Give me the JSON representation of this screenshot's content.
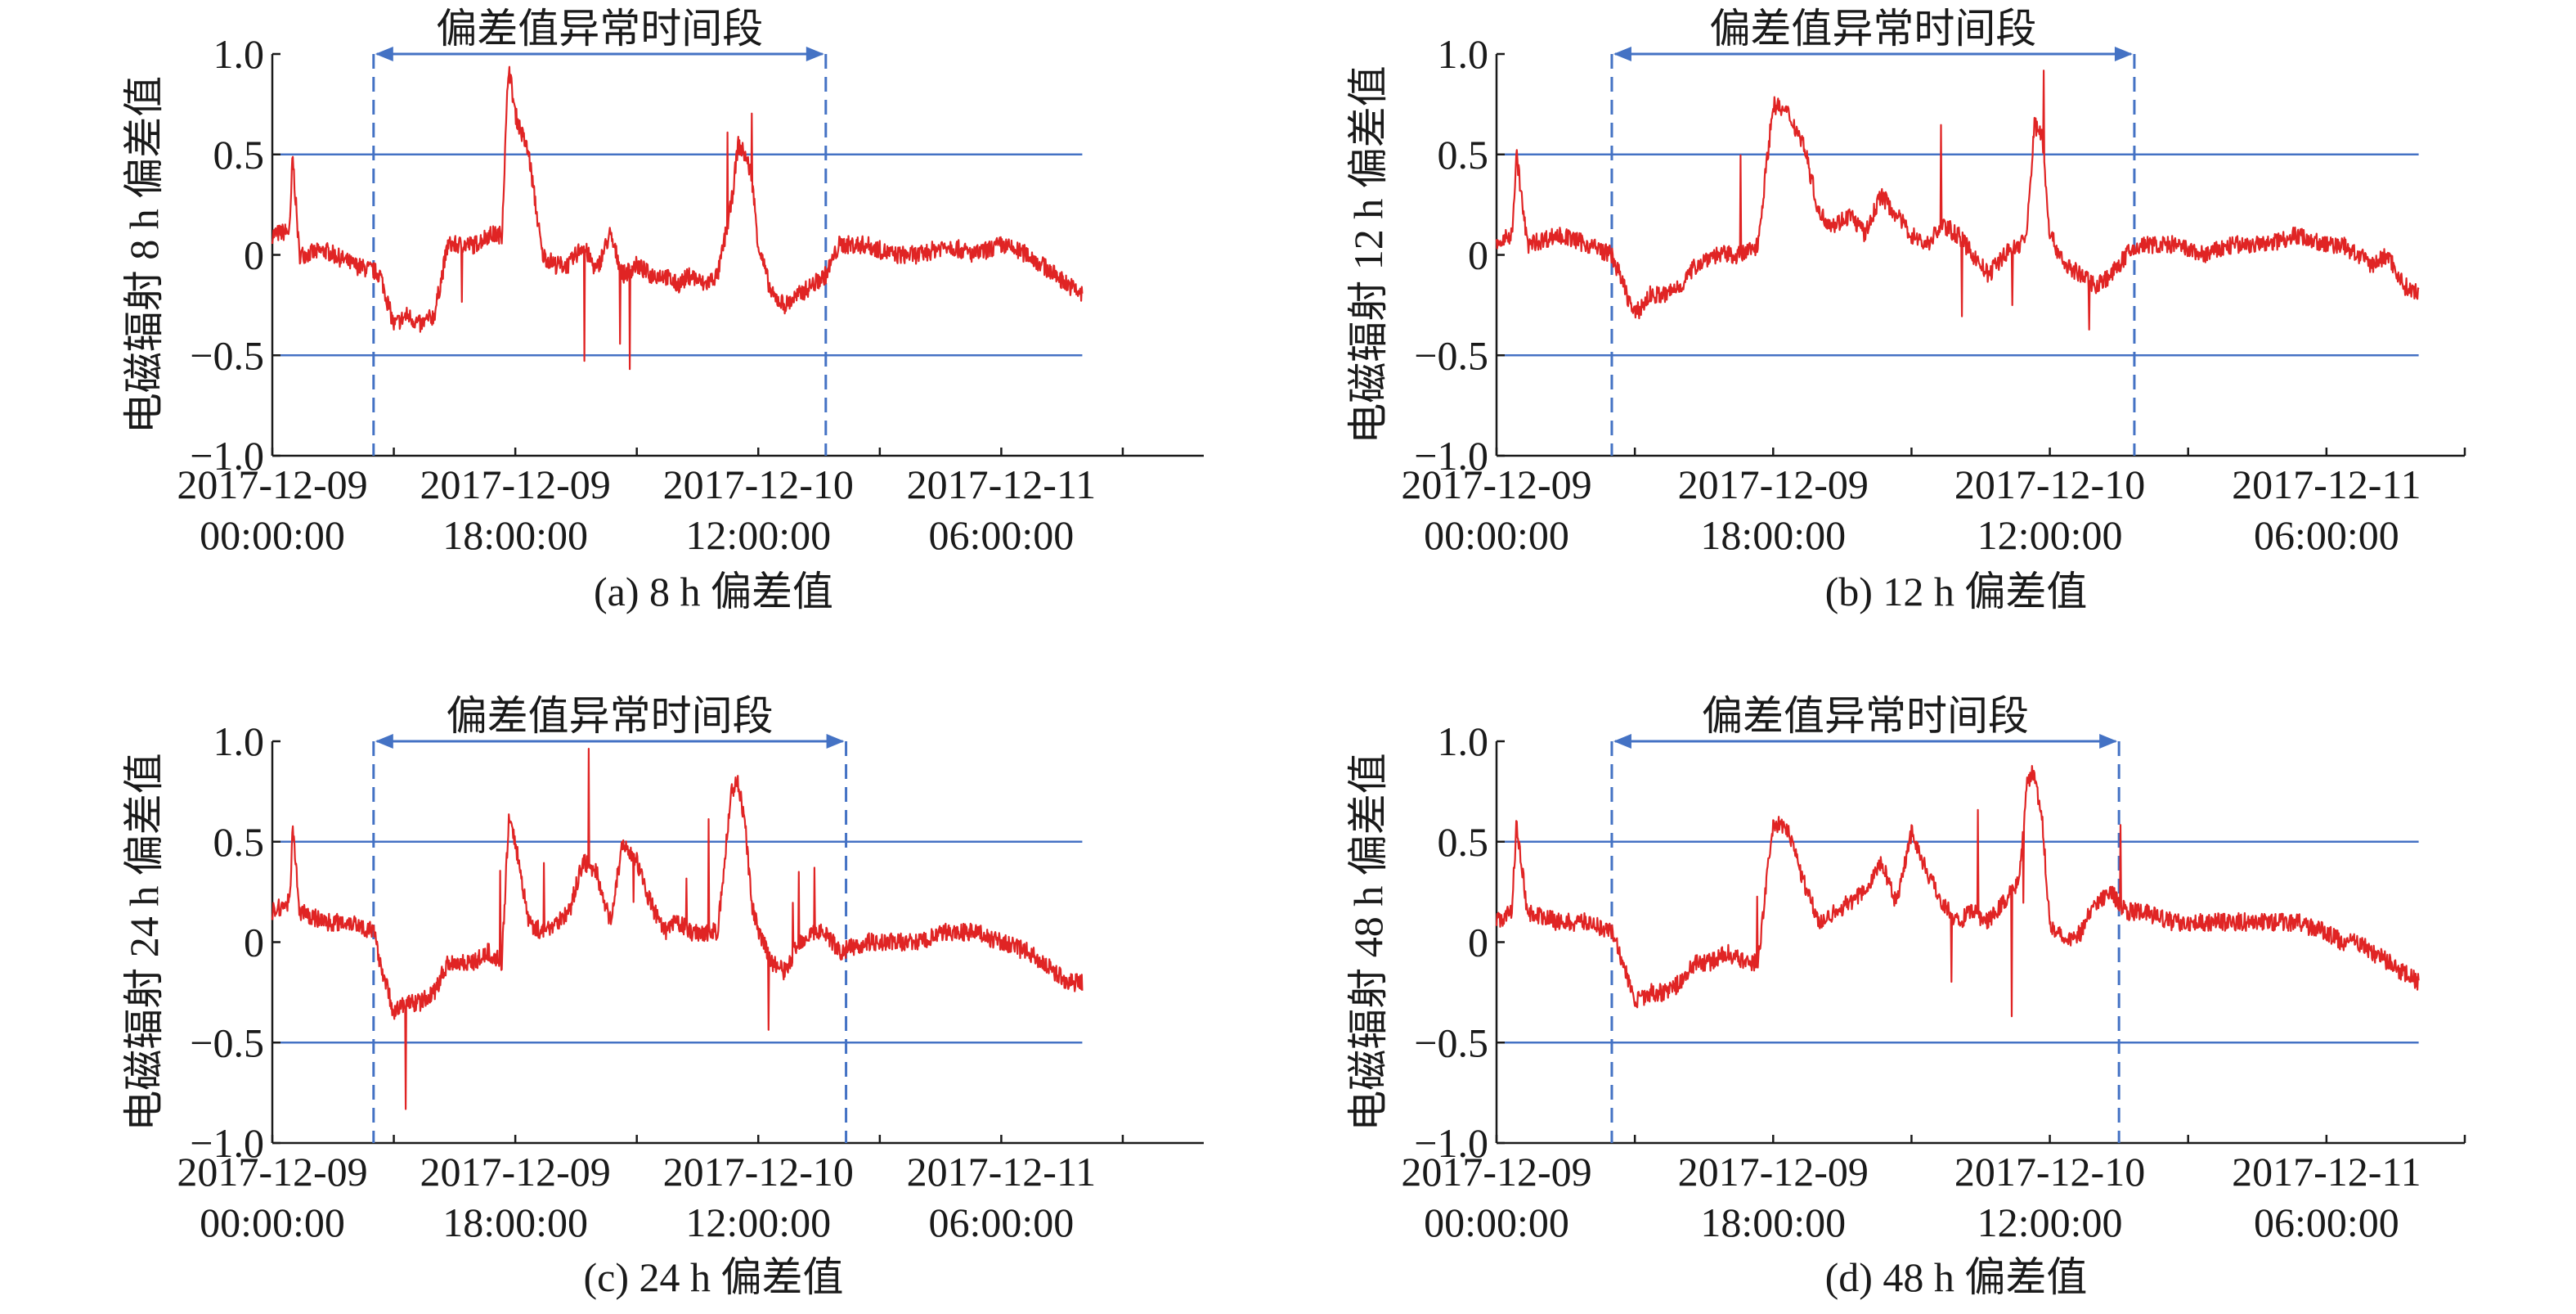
{
  "colors": {
    "series": "#e02424",
    "reference": "#4472c4",
    "axis": "#1a1a1a"
  },
  "chart_data": [
    {
      "type": "line",
      "caption": "(a) 8 h 偏差值",
      "ylabel": "电磁辐射 8 h 偏差值",
      "xticks": [
        [
          "2017-12-09",
          "00:00:00"
        ],
        [
          "2017-12-09",
          "18:00:00"
        ],
        [
          "2017-12-10",
          "12:00:00"
        ],
        [
          "2017-12-11",
          "06:00:00"
        ]
      ],
      "xlim_hours": [
        0,
        69
      ],
      "yticks": [
        "1.0",
        "0.5",
        "0",
        "−0.5",
        "−1.0"
      ],
      "ylim": [
        -1.0,
        1.0
      ],
      "reference_lines": [
        0.5,
        -0.5
      ],
      "annotation": {
        "text": "偏差值异常时间段",
        "start_hours": 7.5,
        "end_hours": 41
      },
      "series": [
        {
          "x": [
            0,
            1.3,
            1.5,
            2,
            4,
            6,
            7.5,
            8,
            9,
            10,
            11,
            12,
            13,
            14,
            15,
            16,
            17,
            17.5,
            18,
            19,
            20,
            21,
            22,
            23,
            24,
            25,
            26,
            27,
            28,
            29,
            30,
            31,
            32,
            33,
            34,
            34.5,
            35,
            35.5,
            36,
            37,
            38,
            39,
            40,
            41,
            42,
            44,
            46,
            48,
            50,
            52,
            54,
            56,
            57,
            58,
            59,
            60
          ],
          "y": [
            0.1,
            0.12,
            0.5,
            0,
            0.02,
            -0.05,
            -0.08,
            -0.1,
            -0.35,
            -0.3,
            -0.35,
            -0.3,
            0.05,
            0.05,
            0.05,
            0.1,
            0.1,
            0.95,
            0.7,
            0.5,
            0,
            -0.05,
            -0.05,
            0.05,
            -0.08,
            0.1,
            -0.1,
            -0.05,
            -0.1,
            -0.1,
            -0.15,
            -0.1,
            -0.15,
            -0.1,
            0.25,
            0.55,
            0.5,
            0.4,
            0.05,
            -0.2,
            -0.25,
            -0.2,
            -0.15,
            -0.1,
            0.05,
            0.05,
            0,
            0,
            0.05,
            0,
            0.05,
            0,
            -0.05,
            -0.1,
            -0.15,
            -0.2
          ]
        }
      ]
    },
    {
      "type": "line",
      "caption": "(b) 12 h 偏差值",
      "ylabel": "电磁辐射 12 h 偏差值",
      "xticks": [
        [
          "2017-12-09",
          "00:00:00"
        ],
        [
          "2017-12-09",
          "18:00:00"
        ],
        [
          "2017-12-10",
          "12:00:00"
        ],
        [
          "2017-12-11",
          "06:00:00"
        ]
      ],
      "xlim_hours": [
        0,
        63
      ],
      "yticks": [
        "1.0",
        "0.5",
        "0",
        "−0.5",
        "−1.0"
      ],
      "ylim": [
        -1.0,
        1.0
      ],
      "reference_lines": [
        0.5,
        -0.5
      ],
      "annotation": {
        "text": "偏差值异常时间段",
        "start_hours": 7.5,
        "end_hours": 41.5
      },
      "series": [
        {
          "x": [
            0,
            1,
            1.3,
            2,
            4,
            6,
            7.5,
            8,
            9,
            10,
            11,
            12,
            13,
            14,
            15,
            16,
            17,
            18,
            19,
            20,
            21,
            22,
            23,
            24,
            25,
            26,
            27,
            28,
            29,
            30,
            31,
            32,
            33,
            34,
            34.5,
            35,
            35.5,
            36,
            37,
            38,
            39,
            40,
            41,
            42,
            44,
            46,
            48,
            50,
            52,
            54,
            55,
            56,
            57,
            58,
            59,
            60
          ],
          "y": [
            0.05,
            0.1,
            0.5,
            0.05,
            0.1,
            0.05,
            0,
            -0.1,
            -0.3,
            -0.2,
            -0.2,
            -0.15,
            -0.05,
            0,
            0,
            0,
            0.05,
            0.75,
            0.7,
            0.55,
            0.2,
            0.15,
            0.2,
            0.1,
            0.3,
            0.2,
            0.1,
            0.05,
            0.15,
            0.1,
            0,
            -0.1,
            0,
            0.05,
            0.1,
            0.65,
            0.6,
            0.1,
            -0.05,
            -0.1,
            -0.15,
            -0.1,
            0,
            0.05,
            0.05,
            0,
            0.05,
            0.05,
            0.1,
            0.05,
            0.05,
            0,
            -0.05,
            0,
            -0.15,
            -0.2
          ]
        }
      ]
    },
    {
      "type": "line",
      "caption": "(c) 24 h 偏差值",
      "ylabel": "电磁辐射 24 h  偏差值",
      "xticks": [
        [
          "2017-12-09",
          "00:00:00"
        ],
        [
          "2017-12-09",
          "18:00:00"
        ],
        [
          "2017-12-10",
          "12:00:00"
        ],
        [
          "2017-12-11",
          "06:00:00"
        ]
      ],
      "xlim_hours": [
        0,
        69
      ],
      "yticks": [
        "1.0",
        "0.5",
        "0",
        "−0.5",
        "−1.0"
      ],
      "ylim": [
        -1.0,
        1.0
      ],
      "reference_lines": [
        0.5,
        -0.5
      ],
      "annotation": {
        "text": "偏差值异常时间段",
        "start_hours": 7.5,
        "end_hours": 42.5
      },
      "series": [
        {
          "x": [
            0,
            1.3,
            1.5,
            2,
            4,
            6,
            7.5,
            8,
            9,
            10,
            11,
            12,
            13,
            14,
            15,
            16,
            17,
            17.5,
            18,
            19,
            20,
            21,
            22,
            23,
            24,
            25,
            26,
            27,
            28,
            29,
            30,
            31,
            32,
            33,
            34,
            34.5,
            35,
            35.5,
            36,
            37,
            38,
            39,
            40,
            41,
            42,
            44,
            46,
            48,
            50,
            52,
            54,
            56,
            57,
            58,
            59,
            60
          ],
          "y": [
            0.15,
            0.2,
            0.6,
            0.15,
            0.1,
            0.1,
            0.05,
            -0.1,
            -0.35,
            -0.3,
            -0.3,
            -0.25,
            -0.1,
            -0.1,
            -0.1,
            -0.05,
            -0.1,
            0.6,
            0.5,
            0.1,
            0.05,
            0.1,
            0.15,
            0.4,
            0.35,
            0.1,
            0.5,
            0.4,
            0.2,
            0.05,
            0.1,
            0.05,
            0.05,
            0.05,
            0.75,
            0.8,
            0.6,
            0.2,
            0.05,
            -0.1,
            -0.15,
            0,
            0.05,
            0.05,
            -0.05,
            0,
            0,
            0,
            0.05,
            0.05,
            0,
            -0.05,
            -0.1,
            -0.15,
            -0.2,
            -0.2
          ]
        }
      ]
    },
    {
      "type": "line",
      "caption": "(d) 48 h 偏差值",
      "ylabel": "电磁辐射 48 h 偏差值",
      "xticks": [
        [
          "2017-12-09",
          "00:00:00"
        ],
        [
          "2017-12-09",
          "18:00:00"
        ],
        [
          "2017-12-10",
          "12:00:00"
        ],
        [
          "2017-12-11",
          "06:00:00"
        ]
      ],
      "xlim_hours": [
        0,
        63
      ],
      "yticks": [
        "1.0",
        "0.5",
        "0",
        "−0.5",
        "−1.0"
      ],
      "ylim": [
        -1.0,
        1.0
      ],
      "reference_lines": [
        0.5,
        -0.5
      ],
      "annotation": {
        "text": "偏差值异常时间段",
        "start_hours": 7.5,
        "end_hours": 40.5
      },
      "series": [
        {
          "x": [
            0,
            1,
            1.3,
            2,
            4,
            6,
            7.5,
            8,
            9,
            10,
            11,
            12,
            13,
            14,
            15,
            16,
            17,
            18,
            19,
            20,
            21,
            22,
            23,
            24,
            25,
            26,
            27,
            28,
            29,
            30,
            31,
            32,
            33,
            34,
            34.5,
            35,
            35.5,
            36,
            37,
            38,
            39,
            40,
            41,
            42,
            44,
            46,
            48,
            50,
            52,
            54,
            55,
            56,
            57,
            58,
            59,
            60
          ],
          "y": [
            0.1,
            0.15,
            0.6,
            0.15,
            0.1,
            0.1,
            0.05,
            -0.05,
            -0.3,
            -0.25,
            -0.25,
            -0.2,
            -0.1,
            -0.1,
            -0.05,
            -0.1,
            -0.1,
            0.6,
            0.55,
            0.3,
            0.1,
            0.15,
            0.2,
            0.25,
            0.4,
            0.2,
            0.55,
            0.35,
            0.2,
            0.1,
            0.15,
            0.1,
            0.2,
            0.3,
            0.8,
            0.85,
            0.6,
            0.1,
            0,
            0.05,
            0.2,
            0.25,
            0.15,
            0.15,
            0.1,
            0.1,
            0.1,
            0.1,
            0.1,
            0.05,
            0,
            0,
            -0.05,
            -0.1,
            -0.15,
            -0.2
          ]
        }
      ]
    }
  ]
}
